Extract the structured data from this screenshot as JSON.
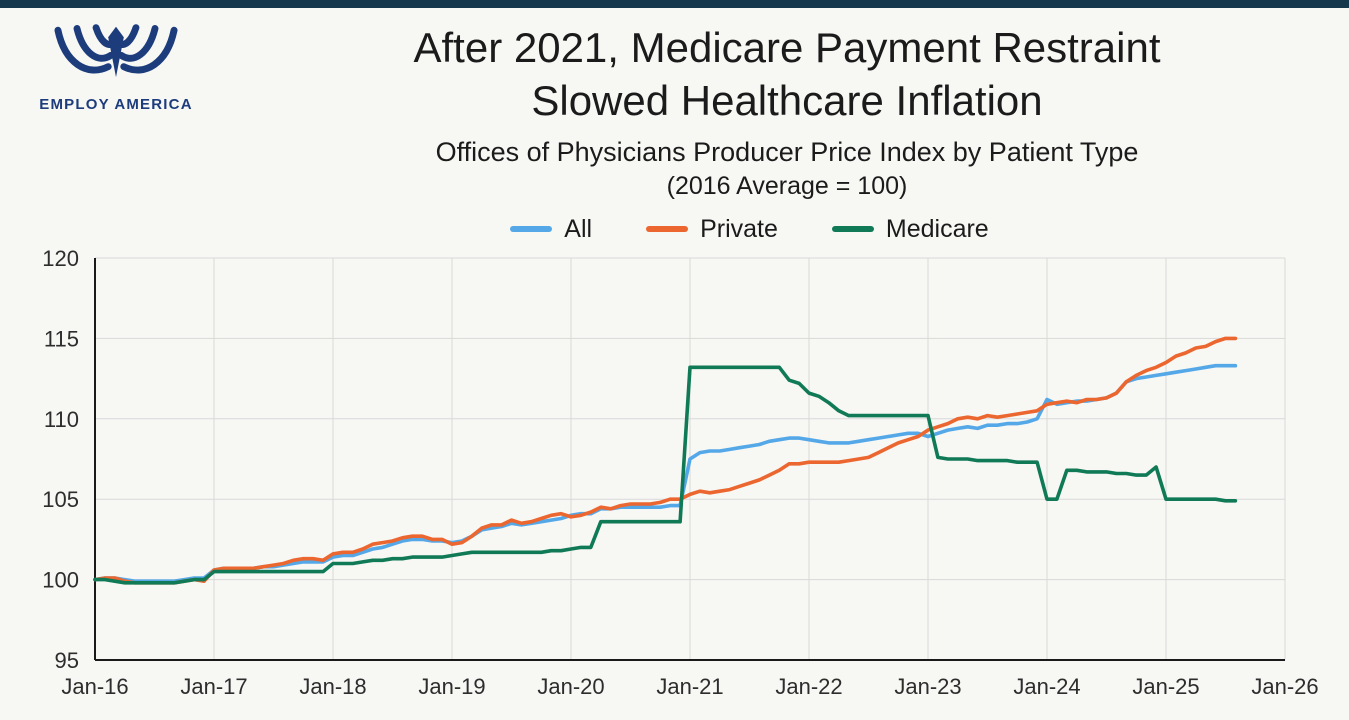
{
  "page": {
    "background": "#f7f7f4",
    "top_bar_color": "#16384d"
  },
  "brand": {
    "name": "EMPLOY AMERICA",
    "logo_color": "#1d3c7c"
  },
  "header": {
    "title_line1": "After 2021, Medicare Payment Restraint",
    "title_line2": "Slowed Healthcare Inflation",
    "subtitle_line1": "Offices of Physicians Producer Price Index by Patient Type",
    "subtitle_line2": "(2016 Average = 100)"
  },
  "chart_data": {
    "type": "line",
    "title": "After 2021, Medicare Payment Restraint Slowed Healthcare Inflation",
    "subtitle": "Offices of Physicians Producer Price Index by Patient Type (2016 Average = 100)",
    "xlabel": "",
    "ylabel": "",
    "ylim": [
      95,
      120
    ],
    "yticks": [
      95,
      100,
      105,
      110,
      115,
      120
    ],
    "x_start": "2016-01",
    "x_end": "2025-08",
    "x_total_months": 120,
    "xticks": [
      {
        "month": 0,
        "label": "Jan-16"
      },
      {
        "month": 12,
        "label": "Jan-17"
      },
      {
        "month": 24,
        "label": "Jan-18"
      },
      {
        "month": 36,
        "label": "Jan-19"
      },
      {
        "month": 48,
        "label": "Jan-20"
      },
      {
        "month": 60,
        "label": "Jan-21"
      },
      {
        "month": 72,
        "label": "Jan-22"
      },
      {
        "month": 84,
        "label": "Jan-23"
      },
      {
        "month": 96,
        "label": "Jan-24"
      },
      {
        "month": 108,
        "label": "Jan-25"
      },
      {
        "month": 120,
        "label": "Jan-26"
      }
    ],
    "grid": true,
    "grid_color": "#d9d9d9",
    "axis_color": "#1a1a1a",
    "tick_color": "#2d2d2d",
    "legend_position": "top",
    "series": [
      {
        "name": "All",
        "color": "#55a8e8",
        "values": [
          100.0,
          100.1,
          100.1,
          100.0,
          99.9,
          99.9,
          99.9,
          99.9,
          99.9,
          100.0,
          100.1,
          100.1,
          100.6,
          100.7,
          100.7,
          100.7,
          100.7,
          100.8,
          100.8,
          100.9,
          101.0,
          101.1,
          101.1,
          101.1,
          101.4,
          101.5,
          101.5,
          101.7,
          101.9,
          102.0,
          102.2,
          102.4,
          102.5,
          102.5,
          102.4,
          102.4,
          102.3,
          102.4,
          102.7,
          103.1,
          103.2,
          103.3,
          103.5,
          103.4,
          103.5,
          103.6,
          103.7,
          103.8,
          104.0,
          104.1,
          104.1,
          104.4,
          104.4,
          104.5,
          104.5,
          104.5,
          104.5,
          104.5,
          104.6,
          104.6,
          107.5,
          107.9,
          108.0,
          108.0,
          108.1,
          108.2,
          108.3,
          108.4,
          108.6,
          108.7,
          108.8,
          108.8,
          108.7,
          108.6,
          108.5,
          108.5,
          108.5,
          108.6,
          108.7,
          108.8,
          108.9,
          109.0,
          109.1,
          109.1,
          108.9,
          109.1,
          109.3,
          109.4,
          109.5,
          109.4,
          109.6,
          109.6,
          109.7,
          109.7,
          109.8,
          110.0,
          111.2,
          110.9,
          111.0,
          111.1,
          111.1,
          111.2,
          111.3,
          111.6,
          112.3,
          112.5,
          112.6,
          112.7,
          112.8,
          112.9,
          113.0,
          113.1,
          113.2,
          113.3,
          113.3,
          113.3
        ]
      },
      {
        "name": "Private",
        "color": "#ec662f",
        "values": [
          100.0,
          100.1,
          100.1,
          99.9,
          99.8,
          99.8,
          99.8,
          99.8,
          99.8,
          99.9,
          100.0,
          99.9,
          100.6,
          100.7,
          100.7,
          100.7,
          100.7,
          100.8,
          100.9,
          101.0,
          101.2,
          101.3,
          101.3,
          101.2,
          101.6,
          101.7,
          101.7,
          101.9,
          102.2,
          102.3,
          102.4,
          102.6,
          102.7,
          102.7,
          102.5,
          102.5,
          102.2,
          102.3,
          102.7,
          103.2,
          103.4,
          103.4,
          103.7,
          103.5,
          103.6,
          103.8,
          104.0,
          104.1,
          103.9,
          104.0,
          104.2,
          104.5,
          104.4,
          104.6,
          104.7,
          104.7,
          104.7,
          104.8,
          105.0,
          105.0,
          105.3,
          105.5,
          105.4,
          105.5,
          105.6,
          105.8,
          106.0,
          106.2,
          106.5,
          106.8,
          107.2,
          107.2,
          107.3,
          107.3,
          107.3,
          107.3,
          107.4,
          107.5,
          107.6,
          107.9,
          108.2,
          108.5,
          108.7,
          108.9,
          109.3,
          109.5,
          109.7,
          110.0,
          110.1,
          110.0,
          110.2,
          110.1,
          110.2,
          110.3,
          110.4,
          110.5,
          110.9,
          111.0,
          111.1,
          111.0,
          111.2,
          111.2,
          111.3,
          111.6,
          112.3,
          112.7,
          113.0,
          113.2,
          113.5,
          113.9,
          114.1,
          114.4,
          114.5,
          114.8,
          115.0,
          115.0
        ]
      },
      {
        "name": "Medicare",
        "color": "#107a56",
        "values": [
          100.0,
          100.0,
          99.9,
          99.8,
          99.8,
          99.8,
          99.8,
          99.8,
          99.8,
          99.9,
          100.0,
          100.0,
          100.5,
          100.5,
          100.5,
          100.5,
          100.5,
          100.5,
          100.5,
          100.5,
          100.5,
          100.5,
          100.5,
          100.5,
          101.0,
          101.0,
          101.0,
          101.1,
          101.2,
          101.2,
          101.3,
          101.3,
          101.4,
          101.4,
          101.4,
          101.4,
          101.5,
          101.6,
          101.7,
          101.7,
          101.7,
          101.7,
          101.7,
          101.7,
          101.7,
          101.7,
          101.8,
          101.8,
          101.9,
          102.0,
          102.0,
          103.6,
          103.6,
          103.6,
          103.6,
          103.6,
          103.6,
          103.6,
          103.6,
          103.6,
          113.2,
          113.2,
          113.2,
          113.2,
          113.2,
          113.2,
          113.2,
          113.2,
          113.2,
          113.2,
          112.4,
          112.2,
          111.6,
          111.4,
          111.0,
          110.5,
          110.2,
          110.2,
          110.2,
          110.2,
          110.2,
          110.2,
          110.2,
          110.2,
          110.2,
          107.6,
          107.5,
          107.5,
          107.5,
          107.4,
          107.4,
          107.4,
          107.4,
          107.3,
          107.3,
          107.3,
          105.0,
          105.0,
          106.8,
          106.8,
          106.7,
          106.7,
          106.7,
          106.6,
          106.6,
          106.5,
          106.5,
          107.0,
          105.0,
          105.0,
          105.0,
          105.0,
          105.0,
          105.0,
          104.9,
          104.9
        ]
      }
    ]
  }
}
